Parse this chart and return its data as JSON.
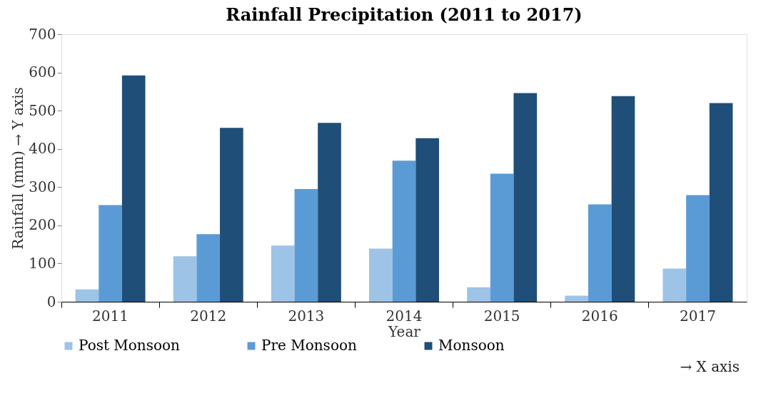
{
  "chart_data": {
    "type": "bar",
    "title": "Rainfall Precipitation (2011 to 2017)",
    "xlabel": "Year",
    "ylabel": "Rainfall (mm) → Y axis",
    "categories": [
      "2011",
      "2012",
      "2013",
      "2014",
      "2015",
      "2016",
      "2017"
    ],
    "series": [
      {
        "name": "Post Monsoon",
        "color": "#9dc3e6",
        "values": [
          32,
          119,
          147,
          139,
          38,
          16,
          87
        ]
      },
      {
        "name": "Pre Monsoon",
        "color": "#5b9bd5",
        "values": [
          253,
          177,
          295,
          369,
          335,
          255,
          279
        ]
      },
      {
        "name": "Monsoon",
        "color": "#1f4e79",
        "values": [
          592,
          455,
          468,
          428,
          546,
          538,
          520
        ]
      }
    ],
    "ylim": [
      0,
      700
    ],
    "yticks": [
      0,
      100,
      200,
      300,
      400,
      500,
      600,
      700
    ],
    "grid": false,
    "legend": "bottom",
    "annotations": [
      "→ X axis"
    ]
  }
}
